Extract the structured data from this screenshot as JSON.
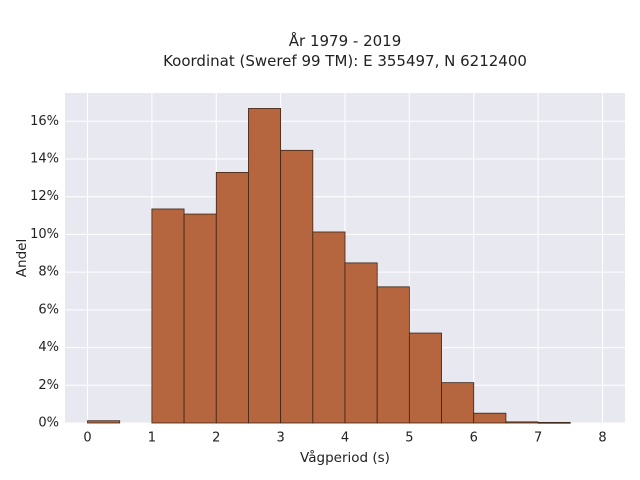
{
  "chart_data": {
    "type": "bar",
    "title_lines": [
      "År 1979 - 2019",
      "Koordinat (Sweref 99 TM): E 355497, N 6212400"
    ],
    "xlabel": "Vågperiod (s)",
    "ylabel": "Andel",
    "xlim": [
      -0.35,
      8.35
    ],
    "ylim": [
      0,
      0.175
    ],
    "xticks": [
      0,
      1,
      2,
      3,
      4,
      5,
      6,
      7,
      8
    ],
    "xtick_labels": [
      "0",
      "1",
      "2",
      "3",
      "4",
      "5",
      "6",
      "7",
      "8"
    ],
    "yticks": [
      0,
      0.02,
      0.04,
      0.06,
      0.08,
      0.1,
      0.12,
      0.14,
      0.16
    ],
    "ytick_labels": [
      "0%",
      "2%",
      "4%",
      "6%",
      "8%",
      "10%",
      "12%",
      "14%",
      "16%"
    ],
    "bin_width": 0.5,
    "bins": [
      {
        "x0": 0.0,
        "value": 0.0012
      },
      {
        "x0": 0.5,
        "value": 0.0
      },
      {
        "x0": 1.0,
        "value": 0.1135
      },
      {
        "x0": 1.5,
        "value": 0.1108
      },
      {
        "x0": 2.0,
        "value": 0.1329
      },
      {
        "x0": 2.5,
        "value": 0.1668
      },
      {
        "x0": 3.0,
        "value": 0.1446
      },
      {
        "x0": 3.5,
        "value": 0.1013
      },
      {
        "x0": 4.0,
        "value": 0.0849
      },
      {
        "x0": 4.5,
        "value": 0.0722
      },
      {
        "x0": 5.0,
        "value": 0.0477
      },
      {
        "x0": 5.5,
        "value": 0.0214
      },
      {
        "x0": 6.0,
        "value": 0.0052
      },
      {
        "x0": 6.5,
        "value": 0.0006
      },
      {
        "x0": 7.0,
        "value": 0.0003
      }
    ],
    "grid": true,
    "colors": {
      "bar_fill": "#b5663f",
      "bar_edge": "#3b2416",
      "plot_bg": "#e8e8f0",
      "grid": "#ffffff"
    }
  }
}
